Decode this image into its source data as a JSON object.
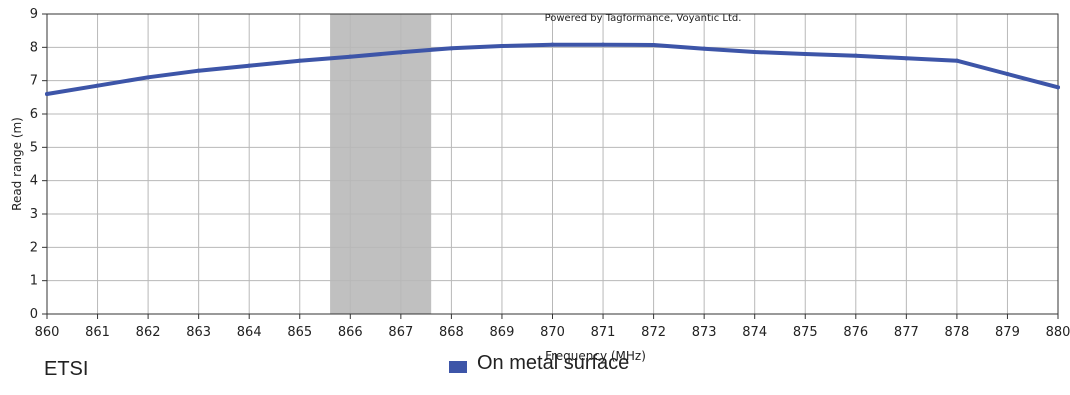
{
  "chart_data": {
    "type": "line",
    "watermark": "Powered by Tagformance, Voyantic Ltd.",
    "xlabel": "Frequency (MHz)",
    "ylabel": "Read range (m)",
    "xlim": [
      860,
      880
    ],
    "ylim": [
      0,
      9
    ],
    "x_ticks": [
      "860",
      "861",
      "862",
      "863",
      "864",
      "865",
      "866",
      "867",
      "868",
      "869",
      "870",
      "871",
      "872",
      "873",
      "874",
      "875",
      "876",
      "877",
      "878",
      "879",
      "880"
    ],
    "y_ticks": [
      "0",
      "1",
      "2",
      "3",
      "4",
      "5",
      "6",
      "7",
      "8",
      "9"
    ],
    "grid": true,
    "band": {
      "label": "ETSI",
      "x_start": 865.6,
      "x_end": 867.6,
      "color": "#c0c0c0"
    },
    "series": [
      {
        "name": "On metal surface",
        "color": "#3d55a8",
        "x": [
          860,
          861,
          862,
          863,
          864,
          865,
          866,
          867,
          868,
          869,
          870,
          871,
          872,
          873,
          874,
          875,
          876,
          877,
          878,
          879,
          880
        ],
        "y": [
          6.6,
          6.85,
          7.1,
          7.3,
          7.45,
          7.6,
          7.72,
          7.85,
          7.97,
          8.04,
          8.08,
          8.08,
          8.07,
          7.96,
          7.86,
          7.8,
          7.75,
          7.67,
          7.6,
          7.2,
          6.8
        ]
      }
    ],
    "legend_position": "bottom-center"
  }
}
